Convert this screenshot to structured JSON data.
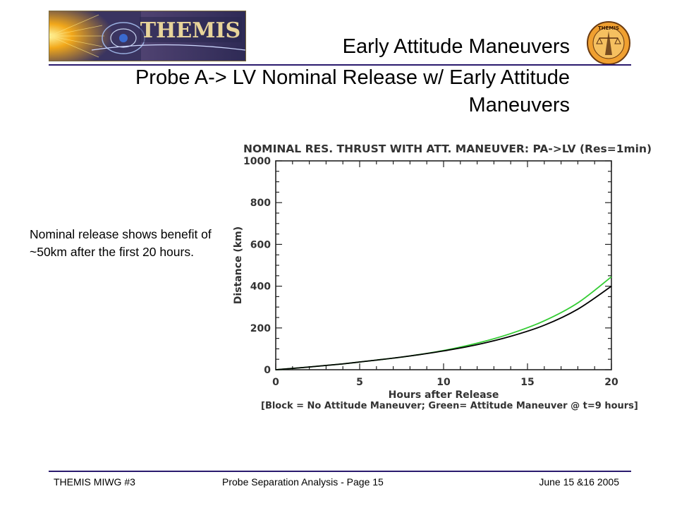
{
  "header": {
    "logo_text": "THEMIS",
    "seal_text": "THEMIS",
    "title_line1": "Early Attitude Maneuvers",
    "title_line2": "Probe A-> LV Nominal Release w/ Early Attitude",
    "title_line3": "Maneuvers"
  },
  "note": "Nominal release shows benefit of ~50km after the first 20 hours.",
  "footer": {
    "left": "THEMIS MIWG #3",
    "center": "Probe Separation Analysis - Page 15",
    "right": "June 15 &16 2005"
  },
  "colors": {
    "rule": "#2a1a6e",
    "green_series": "#33cc33",
    "black_series": "#000000"
  },
  "chart_data": {
    "type": "line",
    "title": "NOMINAL RES. THRUST WITH ATT. MANEUVER: PA->LV (Res=1min)",
    "xlabel": "Hours after Release",
    "ylabel": "Distance (km)",
    "xlim": [
      0,
      20
    ],
    "ylim": [
      0,
      1000
    ],
    "xticks": [
      "0",
      "5",
      "10",
      "15",
      "20"
    ],
    "yticks": [
      "0",
      "200",
      "400",
      "600",
      "800",
      "1000"
    ],
    "caption": "[Block = No Attitude Maneuver; Green= Attitude Maneuver @ t=9 hours]",
    "x": [
      0,
      2,
      4,
      6,
      8,
      10,
      12,
      14,
      16,
      18,
      20
    ],
    "series": [
      {
        "color": "#000000",
        "values": [
          0,
          13,
          28,
          46,
          66,
          90,
          120,
          160,
          213,
          290,
          400
        ]
      },
      {
        "color": "#33cc33",
        "values": [
          0,
          13,
          28,
          46,
          66,
          92,
          127,
          173,
          234,
          320,
          445
        ]
      }
    ]
  }
}
